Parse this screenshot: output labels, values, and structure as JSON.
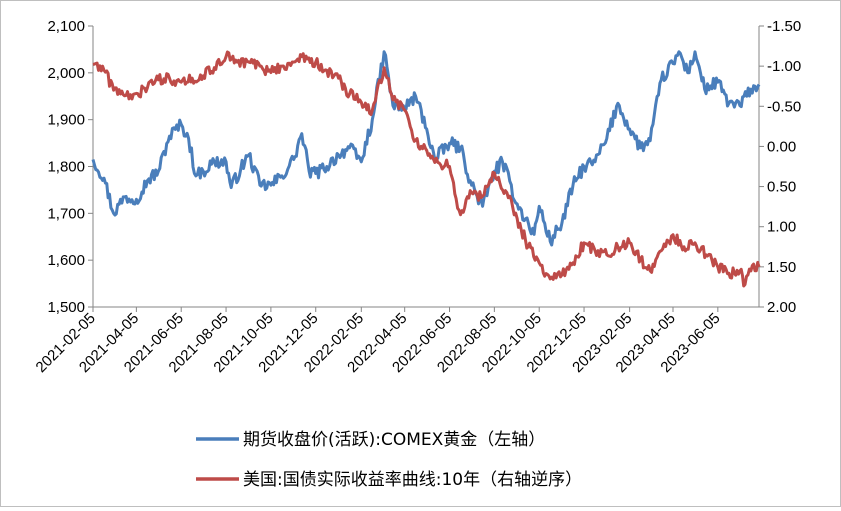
{
  "chart_data": {
    "type": "line",
    "title": "",
    "xlabel": "",
    "ylabel": "",
    "x_ticks": [
      "2021-02-05",
      "2021-04-05",
      "2021-06-05",
      "2021-08-05",
      "2021-10-05",
      "2021-12-05",
      "2022-02-05",
      "2022-04-05",
      "2022-06-05",
      "2022-08-05",
      "2022-10-05",
      "2022-12-05",
      "2023-02-05",
      "2023-04-05",
      "2023-06-05"
    ],
    "x_range": [
      "2021-02-05",
      "2023-07-31"
    ],
    "y_left": {
      "lim": [
        1500,
        2100
      ],
      "ticks": [
        "1,500",
        "1,600",
        "1,700",
        "1,800",
        "1,900",
        "2,000",
        "2,100"
      ]
    },
    "y_right": {
      "lim": [
        -1.5,
        2.0
      ],
      "inverted": true,
      "ticks": [
        "-1.50",
        "-1.00",
        "-0.50",
        "0.00",
        "0.50",
        "1.00",
        "1.50",
        "2.00"
      ]
    },
    "grid": false,
    "legend_position": "bottom",
    "series": [
      {
        "name": "期货收盘价(活跃):COMEX黄金（左轴）",
        "axis": "left",
        "color": "#4a7ebb",
        "points": [
          [
            "2021-02-05",
            1815
          ],
          [
            "2021-02-20",
            1775
          ],
          [
            "2021-03-05",
            1700
          ],
          [
            "2021-03-20",
            1735
          ],
          [
            "2021-04-05",
            1730
          ],
          [
            "2021-04-20",
            1770
          ],
          [
            "2021-05-05",
            1790
          ],
          [
            "2021-05-20",
            1865
          ],
          [
            "2021-06-05",
            1890
          ],
          [
            "2021-06-15",
            1860
          ],
          [
            "2021-06-25",
            1780
          ],
          [
            "2021-07-05",
            1790
          ],
          [
            "2021-07-20",
            1810
          ],
          [
            "2021-08-05",
            1810
          ],
          [
            "2021-08-12",
            1755
          ],
          [
            "2021-08-25",
            1795
          ],
          [
            "2021-09-05",
            1825
          ],
          [
            "2021-09-20",
            1760
          ],
          [
            "2021-10-05",
            1760
          ],
          [
            "2021-10-20",
            1780
          ],
          [
            "2021-11-05",
            1815
          ],
          [
            "2021-11-16",
            1870
          ],
          [
            "2021-11-26",
            1790
          ],
          [
            "2021-12-05",
            1785
          ],
          [
            "2021-12-20",
            1800
          ],
          [
            "2022-01-05",
            1825
          ],
          [
            "2022-01-20",
            1840
          ],
          [
            "2022-02-05",
            1810
          ],
          [
            "2022-02-20",
            1900
          ],
          [
            "2022-03-08",
            2045
          ],
          [
            "2022-03-20",
            1930
          ],
          [
            "2022-04-05",
            1925
          ],
          [
            "2022-04-20",
            1950
          ],
          [
            "2022-05-05",
            1880
          ],
          [
            "2022-05-16",
            1815
          ],
          [
            "2022-06-05",
            1850
          ],
          [
            "2022-06-20",
            1840
          ],
          [
            "2022-07-05",
            1760
          ],
          [
            "2022-07-20",
            1715
          ],
          [
            "2022-08-05",
            1790
          ],
          [
            "2022-08-16",
            1810
          ],
          [
            "2022-09-05",
            1720
          ],
          [
            "2022-09-28",
            1655
          ],
          [
            "2022-10-05",
            1715
          ],
          [
            "2022-10-20",
            1640
          ],
          [
            "2022-11-05",
            1680
          ],
          [
            "2022-11-20",
            1760
          ],
          [
            "2022-12-05",
            1800
          ],
          [
            "2022-12-20",
            1810
          ],
          [
            "2023-01-05",
            1860
          ],
          [
            "2023-01-20",
            1935
          ],
          [
            "2023-02-05",
            1880
          ],
          [
            "2023-02-20",
            1840
          ],
          [
            "2023-03-05",
            1855
          ],
          [
            "2023-03-20",
            1985
          ],
          [
            "2023-04-05",
            2020
          ],
          [
            "2023-04-13",
            2045
          ],
          [
            "2023-04-25",
            2000
          ],
          [
            "2023-05-05",
            2045
          ],
          [
            "2023-05-18",
            1965
          ],
          [
            "2023-06-05",
            1980
          ],
          [
            "2023-06-20",
            1935
          ],
          [
            "2023-07-05",
            1930
          ],
          [
            "2023-07-20",
            1965
          ],
          [
            "2023-07-31",
            1975
          ]
        ]
      },
      {
        "name": "美国:国债实际收益率曲线:10年（右轴逆序）",
        "axis": "right",
        "color": "#be4b48",
        "points": [
          [
            "2021-02-05",
            -1.02
          ],
          [
            "2021-02-20",
            -0.95
          ],
          [
            "2021-03-05",
            -0.7
          ],
          [
            "2021-03-20",
            -0.63
          ],
          [
            "2021-04-05",
            -0.66
          ],
          [
            "2021-04-20",
            -0.73
          ],
          [
            "2021-05-05",
            -0.83
          ],
          [
            "2021-05-20",
            -0.85
          ],
          [
            "2021-06-05",
            -0.8
          ],
          [
            "2021-06-20",
            -0.85
          ],
          [
            "2021-07-05",
            -0.88
          ],
          [
            "2021-07-20",
            -0.98
          ],
          [
            "2021-08-05",
            -1.12
          ],
          [
            "2021-08-20",
            -1.05
          ],
          [
            "2021-09-05",
            -1.05
          ],
          [
            "2021-09-20",
            -1.0
          ],
          [
            "2021-10-05",
            -0.92
          ],
          [
            "2021-10-20",
            -1.0
          ],
          [
            "2021-11-05",
            -1.05
          ],
          [
            "2021-11-16",
            -1.12
          ],
          [
            "2021-12-05",
            -1.05
          ],
          [
            "2021-12-20",
            -0.95
          ],
          [
            "2022-01-05",
            -0.85
          ],
          [
            "2022-01-20",
            -0.65
          ],
          [
            "2022-02-05",
            -0.55
          ],
          [
            "2022-02-20",
            -0.45
          ],
          [
            "2022-03-08",
            -0.98
          ],
          [
            "2022-03-20",
            -0.58
          ],
          [
            "2022-04-05",
            -0.45
          ],
          [
            "2022-04-20",
            -0.08
          ],
          [
            "2022-05-05",
            0.05
          ],
          [
            "2022-05-16",
            0.2
          ],
          [
            "2022-06-05",
            0.25
          ],
          [
            "2022-06-14",
            0.65
          ],
          [
            "2022-06-20",
            0.85
          ],
          [
            "2022-07-05",
            0.58
          ],
          [
            "2022-07-20",
            0.62
          ],
          [
            "2022-08-05",
            0.33
          ],
          [
            "2022-08-20",
            0.55
          ],
          [
            "2022-09-05",
            0.9
          ],
          [
            "2022-09-20",
            1.25
          ],
          [
            "2022-10-05",
            1.45
          ],
          [
            "2022-10-20",
            1.65
          ],
          [
            "2022-11-05",
            1.6
          ],
          [
            "2022-11-20",
            1.45
          ],
          [
            "2022-12-05",
            1.2
          ],
          [
            "2022-12-20",
            1.3
          ],
          [
            "2023-01-05",
            1.35
          ],
          [
            "2023-01-20",
            1.25
          ],
          [
            "2023-02-05",
            1.2
          ],
          [
            "2023-02-20",
            1.4
          ],
          [
            "2023-03-05",
            1.55
          ],
          [
            "2023-03-20",
            1.3
          ],
          [
            "2023-04-05",
            1.1
          ],
          [
            "2023-04-20",
            1.25
          ],
          [
            "2023-05-05",
            1.2
          ],
          [
            "2023-05-20",
            1.35
          ],
          [
            "2023-06-05",
            1.5
          ],
          [
            "2023-06-20",
            1.58
          ],
          [
            "2023-07-05",
            1.55
          ],
          [
            "2023-07-12",
            1.72
          ],
          [
            "2023-07-20",
            1.55
          ],
          [
            "2023-07-31",
            1.5
          ]
        ]
      }
    ]
  }
}
